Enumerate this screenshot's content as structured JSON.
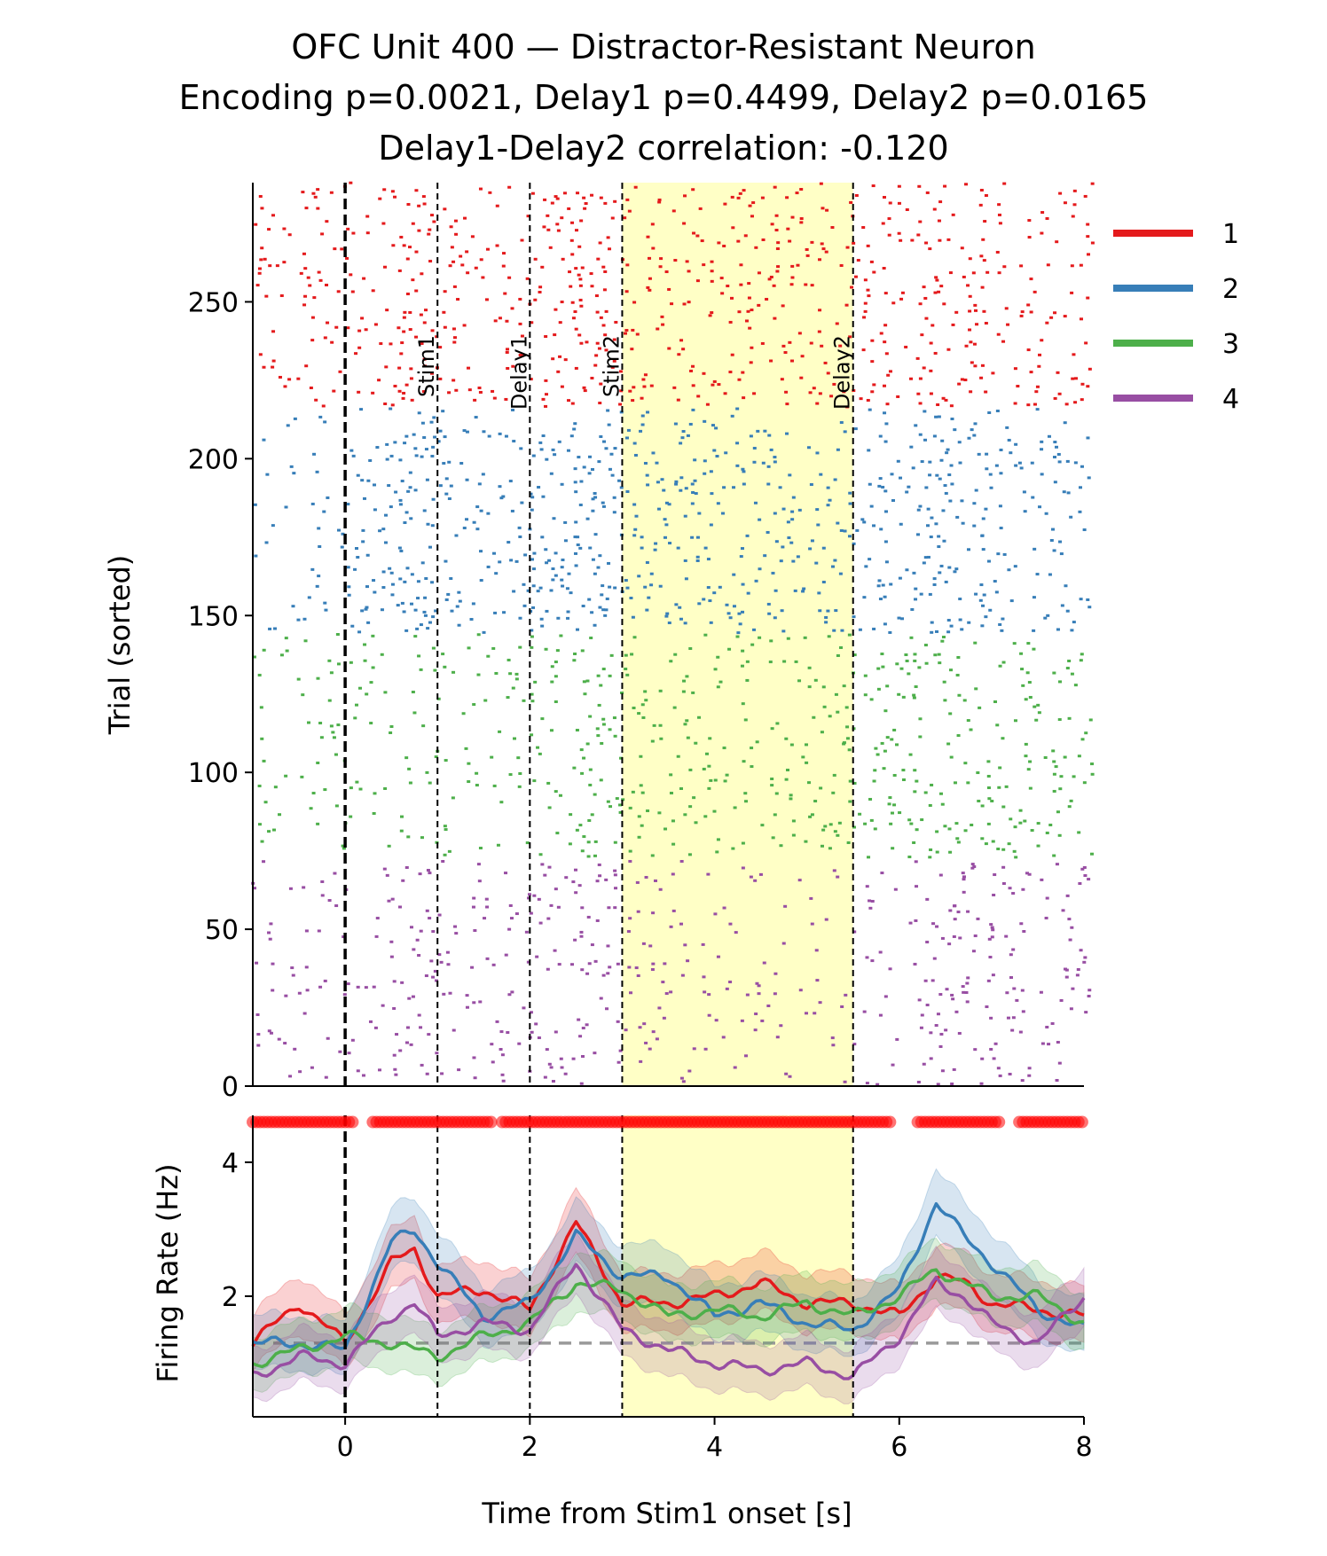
{
  "chart_data": [
    {
      "type": "scatter",
      "kind": "raster",
      "title_lines": [
        "OFC Unit 400 — Distractor-Resistant Neuron",
        "Encoding p=0.0021, Delay1 p=0.4499, Delay2 p=0.0165",
        "Delay1-Delay2 correlation: -0.120"
      ],
      "xlabel": "",
      "ylabel": "Trial (sorted)",
      "xlim": [
        -1,
        8
      ],
      "ylim": [
        0,
        288
      ],
      "yticks": [
        0,
        50,
        100,
        150,
        200,
        250
      ],
      "grid": false,
      "legend": {
        "placement": "right, outside top",
        "entries": [
          "1",
          "2",
          "3",
          "4"
        ]
      },
      "series": [
        {
          "name": "1",
          "color": "#e41a1c",
          "trial_range": [
            216,
            288
          ]
        },
        {
          "name": "2",
          "color": "#377eb8",
          "trial_range": [
            144,
            216
          ]
        },
        {
          "name": "3",
          "color": "#4daf4a",
          "trial_range": [
            72,
            144
          ]
        },
        {
          "name": "4",
          "color": "#984ea3",
          "trial_range": [
            0,
            72
          ]
        }
      ],
      "event_lines": [
        {
          "x": 0,
          "label": "",
          "style": "dashed-thick"
        },
        {
          "x": 1,
          "label": "Stim1",
          "style": "dashed"
        },
        {
          "x": 2,
          "label": "Delay1",
          "style": "dashed"
        },
        {
          "x": 3,
          "label": "Stim2",
          "style": "dashed"
        },
        {
          "x": 5.5,
          "label": "Delay2",
          "style": "dashed"
        }
      ],
      "shaded_region": {
        "x": [
          3,
          5.5
        ],
        "color": "#ffffb3"
      }
    },
    {
      "type": "line",
      "xlabel": "Time from Stim1 onset [s]",
      "ylabel": "Firing Rate (Hz)",
      "xlim": [
        -1,
        8
      ],
      "ylim": [
        0.2,
        4.7
      ],
      "xticks": [
        0,
        2,
        4,
        6,
        8
      ],
      "yticks": [
        2,
        4
      ],
      "grid": false,
      "baseline": 1.3,
      "shaded_region": {
        "x": [
          3,
          5.5
        ],
        "color": "#ffffb3"
      },
      "significance_marker_y": 4.6,
      "significance_color": "#ff0000",
      "significant_intervals": [
        [
          -1,
          0.1
        ],
        [
          0.3,
          1.6
        ],
        [
          1.7,
          5.9
        ],
        [
          6.2,
          7.1
        ],
        [
          7.3,
          8.0
        ]
      ],
      "x": [
        -1.0,
        -0.5,
        0.0,
        0.5,
        0.75,
        1.0,
        1.5,
        2.0,
        2.5,
        3.0,
        3.5,
        4.0,
        4.5,
        5.0,
        5.5,
        6.0,
        6.4,
        6.7,
        7.0,
        7.5,
        8.0
      ],
      "series": [
        {
          "name": "1",
          "color": "#e41a1c",
          "values": [
            1.3,
            1.9,
            1.3,
            2.5,
            2.7,
            2.0,
            2.1,
            1.8,
            3.1,
            1.9,
            1.9,
            2.0,
            2.2,
            1.9,
            1.9,
            1.7,
            2.3,
            2.2,
            1.9,
            1.8,
            1.7
          ]
        },
        {
          "name": "2",
          "color": "#377eb8",
          "values": [
            1.3,
            1.3,
            1.2,
            2.8,
            3.0,
            2.5,
            1.7,
            1.9,
            2.9,
            2.3,
            2.3,
            1.7,
            1.9,
            1.6,
            1.5,
            2.1,
            3.4,
            2.9,
            2.5,
            1.8,
            1.5
          ]
        },
        {
          "name": "3",
          "color": "#4daf4a",
          "values": [
            1.0,
            1.2,
            1.4,
            1.3,
            1.2,
            1.1,
            1.4,
            1.6,
            2.2,
            2.1,
            1.7,
            1.8,
            1.7,
            1.9,
            1.7,
            2.0,
            2.4,
            2.2,
            2.0,
            2.0,
            1.6
          ]
        },
        {
          "name": "4",
          "color": "#984ea3",
          "values": [
            0.8,
            1.1,
            1.0,
            1.7,
            1.9,
            1.4,
            1.6,
            1.5,
            2.5,
            1.5,
            1.2,
            1.0,
            0.9,
            1.0,
            0.8,
            1.4,
            2.2,
            2.0,
            1.6,
            1.3,
            2.0
          ]
        }
      ]
    }
  ]
}
